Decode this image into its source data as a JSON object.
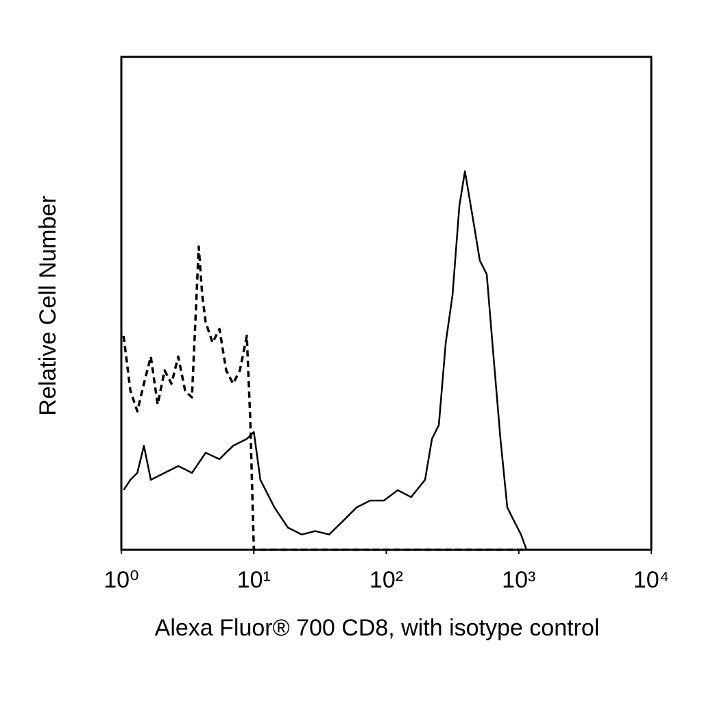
{
  "chart_data": {
    "type": "line",
    "xlabel": "Alexa Fluor® 700 CD8, with isotype control",
    "ylabel": "Relative Cell Number",
    "xscale": "log",
    "xlim": [
      1,
      10000
    ],
    "xticks": [
      {
        "value": 1,
        "label": "10⁰"
      },
      {
        "value": 10,
        "label": "10¹"
      },
      {
        "value": 100,
        "label": "10²"
      },
      {
        "value": 1000,
        "label": "10³"
      },
      {
        "value": 10000,
        "label": "10⁴"
      }
    ],
    "ylim": [
      0,
      100
    ],
    "series": [
      {
        "color": "#000000",
        "dash": false,
        "x": [
          1.04,
          1.17,
          1.32,
          1.48,
          1.67,
          2.12,
          2.69,
          3.41,
          4.33,
          5.5,
          6.97,
          8.85,
          10,
          11.2,
          14.3,
          18.1,
          23.0,
          29.1,
          37.0,
          46.9,
          59.6,
          75.5,
          95.9,
          122,
          154,
          196,
          221,
          249,
          281,
          316,
          356,
          392,
          452,
          508,
          573,
          645,
          727,
          819,
          923,
          1040,
          1143
        ],
        "values": [
          12.1,
          14.2,
          15.6,
          21.1,
          14.2,
          15.6,
          17.0,
          15.6,
          19.7,
          18.4,
          21.1,
          22.5,
          23.9,
          14.2,
          8.6,
          4.5,
          3.1,
          3.8,
          3.1,
          5.8,
          8.6,
          10.0,
          10.0,
          12.1,
          10.7,
          14.2,
          22.5,
          25.3,
          42.0,
          51.7,
          69.8,
          76.8,
          67.0,
          58.7,
          55.9,
          39.2,
          22.5,
          8.6,
          5.8,
          3.1,
          0
        ]
      },
      {
        "color": "#000000",
        "dash": true,
        "x": [
          1.04,
          1.17,
          1.32,
          1.48,
          1.67,
          1.88,
          2.12,
          2.39,
          2.69,
          3.03,
          3.41,
          3.84,
          4.08,
          4.33,
          4.88,
          5.5,
          6.19,
          6.97,
          7.85,
          8.85,
          9.39,
          10,
          46.9,
          1143
        ],
        "values": [
          43.4,
          32.3,
          28.1,
          33.7,
          39.2,
          29.5,
          36.4,
          33.7,
          39.2,
          32.3,
          30.9,
          61.5,
          51.7,
          46.2,
          42.0,
          44.8,
          36.4,
          33.7,
          36.4,
          43.4,
          26.7,
          0,
          0,
          0
        ]
      }
    ]
  }
}
